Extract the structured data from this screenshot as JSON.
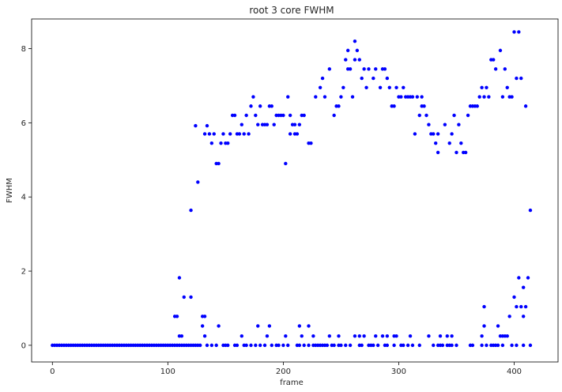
{
  "chart_data": {
    "type": "scatter",
    "title": "root 3 core FWHM",
    "xlabel": "frame",
    "ylabel": "FWHM",
    "xlim": [
      -18,
      438
    ],
    "ylim": [
      -0.45,
      8.8
    ],
    "xticks": [
      0,
      100,
      200,
      300,
      400
    ],
    "yticks": [
      0,
      2,
      4,
      6,
      8
    ],
    "grid": false,
    "marker_color": "#0000ff",
    "series": [
      {
        "points": [
          [
            0,
            0
          ],
          [
            2,
            0
          ],
          [
            4,
            0
          ],
          [
            6,
            0
          ],
          [
            8,
            0
          ],
          [
            10,
            0
          ],
          [
            12,
            0
          ],
          [
            14,
            0
          ],
          [
            16,
            0
          ],
          [
            18,
            0
          ],
          [
            20,
            0
          ],
          [
            22,
            0
          ],
          [
            24,
            0
          ],
          [
            26,
            0
          ],
          [
            28,
            0
          ],
          [
            30,
            0
          ],
          [
            32,
            0
          ],
          [
            34,
            0
          ],
          [
            36,
            0
          ],
          [
            38,
            0
          ],
          [
            40,
            0
          ],
          [
            42,
            0
          ],
          [
            44,
            0
          ],
          [
            46,
            0
          ],
          [
            48,
            0
          ],
          [
            50,
            0
          ],
          [
            52,
            0
          ],
          [
            54,
            0
          ],
          [
            56,
            0
          ],
          [
            58,
            0
          ],
          [
            60,
            0
          ],
          [
            62,
            0
          ],
          [
            64,
            0
          ],
          [
            66,
            0
          ],
          [
            68,
            0
          ],
          [
            70,
            0
          ],
          [
            72,
            0
          ],
          [
            74,
            0
          ],
          [
            76,
            0
          ],
          [
            78,
            0
          ],
          [
            80,
            0
          ],
          [
            82,
            0
          ],
          [
            84,
            0
          ],
          [
            86,
            0
          ],
          [
            88,
            0
          ],
          [
            90,
            0
          ],
          [
            92,
            0
          ],
          [
            94,
            0
          ],
          [
            96,
            0
          ],
          [
            98,
            0
          ],
          [
            100,
            0
          ],
          [
            102,
            0
          ],
          [
            104,
            0
          ],
          [
            106,
            0
          ],
          [
            108,
            0
          ],
          [
            110,
            0
          ],
          [
            112,
            0
          ],
          [
            114,
            0
          ],
          [
            116,
            0
          ],
          [
            118,
            0
          ],
          [
            120,
            0
          ],
          [
            122,
            0
          ],
          [
            124,
            0
          ],
          [
            126,
            0
          ],
          [
            128,
            0
          ],
          [
            134,
            0
          ],
          [
            138,
            0
          ],
          [
            142,
            0
          ],
          [
            148,
            0
          ],
          [
            150,
            0
          ],
          [
            152,
            0
          ],
          [
            158,
            0
          ],
          [
            160,
            0
          ],
          [
            166,
            0
          ],
          [
            168,
            0
          ],
          [
            172,
            0
          ],
          [
            176,
            0
          ],
          [
            180,
            0
          ],
          [
            184,
            0
          ],
          [
            190,
            0
          ],
          [
            194,
            0
          ],
          [
            196,
            0
          ],
          [
            200,
            0
          ],
          [
            204,
            0
          ],
          [
            212,
            0
          ],
          [
            214,
            0
          ],
          [
            218,
            0
          ],
          [
            222,
            0
          ],
          [
            226,
            0
          ],
          [
            228,
            0
          ],
          [
            230,
            0
          ],
          [
            232,
            0
          ],
          [
            234,
            0
          ],
          [
            236,
            0
          ],
          [
            238,
            0
          ],
          [
            242,
            0
          ],
          [
            244,
            0
          ],
          [
            248,
            0
          ],
          [
            250,
            0
          ],
          [
            254,
            0
          ],
          [
            258,
            0
          ],
          [
            266,
            0
          ],
          [
            268,
            0
          ],
          [
            274,
            0
          ],
          [
            276,
            0
          ],
          [
            278,
            0
          ],
          [
            282,
            0
          ],
          [
            288,
            0
          ],
          [
            290,
            0
          ],
          [
            296,
            0
          ],
          [
            302,
            0
          ],
          [
            304,
            0
          ],
          [
            308,
            0
          ],
          [
            312,
            0
          ],
          [
            318,
            0
          ],
          [
            330,
            0
          ],
          [
            334,
            0
          ],
          [
            336,
            0
          ],
          [
            338,
            0
          ],
          [
            342,
            0
          ],
          [
            344,
            0
          ],
          [
            346,
            0
          ],
          [
            350,
            0
          ],
          [
            362,
            0
          ],
          [
            364,
            0
          ],
          [
            372,
            0
          ],
          [
            376,
            0
          ],
          [
            380,
            0
          ],
          [
            382,
            0
          ],
          [
            384,
            0
          ],
          [
            386,
            0
          ],
          [
            390,
            0
          ],
          [
            398,
            0
          ],
          [
            402,
            0
          ],
          [
            408,
            0
          ],
          [
            414,
            0
          ],
          [
            110,
            0.25
          ],
          [
            112,
            0.25
          ],
          [
            130,
            0.52
          ],
          [
            132,
            0.25
          ],
          [
            144,
            0.52
          ],
          [
            164,
            0.25
          ],
          [
            178,
            0.52
          ],
          [
            186,
            0.25
          ],
          [
            188,
            0.52
          ],
          [
            202,
            0.25
          ],
          [
            214,
            0.52
          ],
          [
            216,
            0.25
          ],
          [
            222,
            0.52
          ],
          [
            226,
            0.25
          ],
          [
            240,
            0.25
          ],
          [
            248,
            0.25
          ],
          [
            262,
            0.25
          ],
          [
            266,
            0.25
          ],
          [
            270,
            0.25
          ],
          [
            280,
            0.25
          ],
          [
            286,
            0.25
          ],
          [
            290,
            0.25
          ],
          [
            296,
            0.25
          ],
          [
            298,
            0.25
          ],
          [
            310,
            0.25
          ],
          [
            326,
            0.25
          ],
          [
            336,
            0.25
          ],
          [
            342,
            0.25
          ],
          [
            346,
            0.25
          ],
          [
            372,
            0.25
          ],
          [
            374,
            0.52
          ],
          [
            386,
            0.52
          ],
          [
            388,
            0.25
          ],
          [
            390,
            0.25
          ],
          [
            392,
            0.25
          ],
          [
            394,
            0.25
          ],
          [
            106,
            0.78
          ],
          [
            108,
            0.78
          ],
          [
            130,
            0.78
          ],
          [
            132,
            0.78
          ],
          [
            114,
            1.3
          ],
          [
            120,
            1.3
          ],
          [
            110,
            1.82
          ],
          [
            374,
            1.04
          ],
          [
            396,
            0.78
          ],
          [
            400,
            1.3
          ],
          [
            402,
            1.04
          ],
          [
            406,
            1.04
          ],
          [
            408,
            0.78
          ],
          [
            408,
            1.56
          ],
          [
            410,
            1.04
          ],
          [
            412,
            1.82
          ],
          [
            414,
            3.64
          ],
          [
            404,
            1.82
          ],
          [
            120,
            3.64
          ],
          [
            124,
            5.92
          ],
          [
            126,
            4.4
          ],
          [
            132,
            5.7
          ],
          [
            134,
            5.92
          ],
          [
            136,
            5.7
          ],
          [
            138,
            5.45
          ],
          [
            140,
            5.7
          ],
          [
            142,
            4.9
          ],
          [
            144,
            4.9
          ],
          [
            146,
            5.45
          ],
          [
            148,
            5.7
          ],
          [
            150,
            5.45
          ],
          [
            152,
            5.45
          ],
          [
            154,
            5.7
          ],
          [
            156,
            6.2
          ],
          [
            158,
            6.2
          ],
          [
            160,
            5.7
          ],
          [
            162,
            5.7
          ],
          [
            164,
            5.95
          ],
          [
            166,
            5.7
          ],
          [
            168,
            6.2
          ],
          [
            170,
            5.7
          ],
          [
            172,
            6.45
          ],
          [
            174,
            6.7
          ],
          [
            176,
            6.2
          ],
          [
            178,
            5.95
          ],
          [
            180,
            6.45
          ],
          [
            182,
            5.95
          ],
          [
            184,
            5.95
          ],
          [
            186,
            5.95
          ],
          [
            188,
            6.45
          ],
          [
            190,
            6.45
          ],
          [
            192,
            5.95
          ],
          [
            194,
            6.2
          ],
          [
            196,
            6.2
          ],
          [
            198,
            6.2
          ],
          [
            200,
            6.2
          ],
          [
            202,
            4.9
          ],
          [
            204,
            6.7
          ],
          [
            206,
            5.7
          ],
          [
            206,
            6.2
          ],
          [
            208,
            5.95
          ],
          [
            210,
            5.7
          ],
          [
            210,
            5.95
          ],
          [
            212,
            5.7
          ],
          [
            214,
            5.95
          ],
          [
            216,
            6.2
          ],
          [
            218,
            6.2
          ],
          [
            222,
            5.45
          ],
          [
            224,
            5.45
          ],
          [
            228,
            6.7
          ],
          [
            232,
            6.95
          ],
          [
            234,
            7.2
          ],
          [
            236,
            6.7
          ],
          [
            240,
            7.45
          ],
          [
            244,
            6.2
          ],
          [
            246,
            6.45
          ],
          [
            248,
            6.45
          ],
          [
            250,
            6.7
          ],
          [
            252,
            6.95
          ],
          [
            254,
            7.7
          ],
          [
            256,
            7.45
          ],
          [
            256,
            7.95
          ],
          [
            258,
            7.45
          ],
          [
            260,
            6.7
          ],
          [
            262,
            7.7
          ],
          [
            262,
            8.2
          ],
          [
            264,
            7.95
          ],
          [
            266,
            7.7
          ],
          [
            268,
            7.2
          ],
          [
            270,
            7.45
          ],
          [
            272,
            6.95
          ],
          [
            274,
            7.45
          ],
          [
            278,
            7.2
          ],
          [
            280,
            7.45
          ],
          [
            284,
            6.95
          ],
          [
            286,
            7.45
          ],
          [
            288,
            7.45
          ],
          [
            290,
            7.2
          ],
          [
            292,
            6.95
          ],
          [
            294,
            6.45
          ],
          [
            296,
            6.45
          ],
          [
            298,
            6.95
          ],
          [
            300,
            6.7
          ],
          [
            302,
            6.7
          ],
          [
            304,
            6.95
          ],
          [
            306,
            6.7
          ],
          [
            308,
            6.7
          ],
          [
            310,
            6.7
          ],
          [
            312,
            6.7
          ],
          [
            314,
            5.7
          ],
          [
            316,
            6.7
          ],
          [
            318,
            6.2
          ],
          [
            320,
            6.45
          ],
          [
            320,
            6.7
          ],
          [
            322,
            6.45
          ],
          [
            324,
            6.2
          ],
          [
            326,
            5.95
          ],
          [
            328,
            5.7
          ],
          [
            330,
            5.7
          ],
          [
            332,
            5.45
          ],
          [
            334,
            5.2
          ],
          [
            334,
            5.7
          ],
          [
            340,
            5.95
          ],
          [
            344,
            5.45
          ],
          [
            346,
            5.7
          ],
          [
            348,
            6.2
          ],
          [
            350,
            5.2
          ],
          [
            352,
            5.95
          ],
          [
            354,
            5.45
          ],
          [
            356,
            5.2
          ],
          [
            358,
            5.2
          ],
          [
            360,
            6.2
          ],
          [
            362,
            6.45
          ],
          [
            364,
            6.45
          ],
          [
            366,
            6.45
          ],
          [
            368,
            6.45
          ],
          [
            370,
            6.7
          ],
          [
            372,
            6.95
          ],
          [
            374,
            6.7
          ],
          [
            376,
            6.95
          ],
          [
            378,
            6.7
          ],
          [
            380,
            7.7
          ],
          [
            382,
            7.7
          ],
          [
            384,
            7.45
          ],
          [
            388,
            7.95
          ],
          [
            390,
            6.7
          ],
          [
            392,
            7.45
          ],
          [
            394,
            6.95
          ],
          [
            396,
            6.7
          ],
          [
            398,
            6.7
          ],
          [
            400,
            8.45
          ],
          [
            402,
            7.2
          ],
          [
            404,
            8.45
          ],
          [
            406,
            7.2
          ],
          [
            410,
            6.45
          ]
        ]
      }
    ]
  }
}
